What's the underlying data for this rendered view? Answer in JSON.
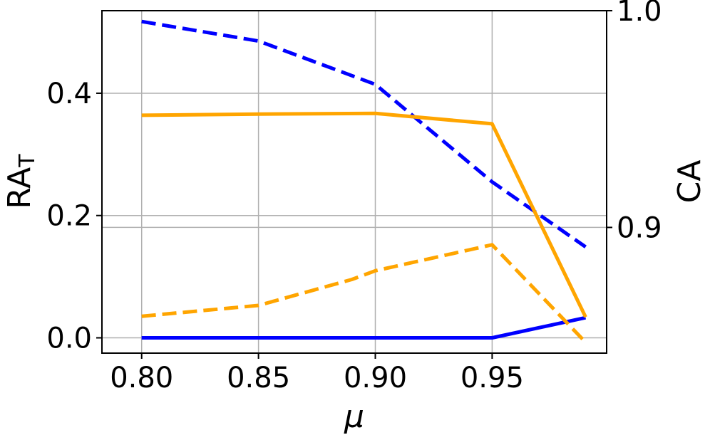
{
  "chart_data": {
    "type": "line",
    "xlabel": "μ",
    "ylabel_left": {
      "main": "RA",
      "sub": "T"
    },
    "ylabel_right": "CA",
    "x_ticks": [
      "0.80",
      "0.85",
      "0.90",
      "0.95"
    ],
    "x_tick_values": [
      0.8,
      0.85,
      0.9,
      0.95
    ],
    "y_left_ticks": [
      "0.0",
      "0.2",
      "0.4"
    ],
    "y_left_tick_values": [
      0.0,
      0.2,
      0.4
    ],
    "y_right_ticks": [
      "0.9",
      "1.0"
    ],
    "y_right_tick_values": [
      0.9,
      1.0
    ],
    "xlim": [
      0.783,
      0.999
    ],
    "ylim_left": [
      -0.025,
      0.535
    ],
    "ylim_right": [
      0.842,
      1.0
    ],
    "grid": true,
    "series": [
      {
        "axis": "left",
        "color": "#0000ff",
        "dash": "solid",
        "x": [
          0.8,
          0.85,
          0.9,
          0.95,
          0.99
        ],
        "y": [
          0.0,
          0.0,
          0.0,
          0.0,
          0.033
        ]
      },
      {
        "axis": "right",
        "color": "#0000ff",
        "dash": "dashed",
        "x": [
          0.8,
          0.85,
          0.89,
          0.9,
          0.95,
          0.99
        ],
        "y": [
          0.995,
          0.986,
          0.97,
          0.966,
          0.921,
          0.891
        ]
      },
      {
        "axis": "left",
        "color": "#ffa500",
        "dash": "solid",
        "x": [
          0.8,
          0.85,
          0.9,
          0.95,
          0.99
        ],
        "y": [
          0.364,
          0.366,
          0.367,
          0.35,
          0.034
        ]
      },
      {
        "axis": "right",
        "color": "#ffa500",
        "dash": "dashed",
        "x": [
          0.8,
          0.85,
          0.89,
          0.9,
          0.95,
          0.99
        ],
        "y": [
          0.859,
          0.864,
          0.876,
          0.88,
          0.892,
          0.847
        ]
      }
    ]
  }
}
